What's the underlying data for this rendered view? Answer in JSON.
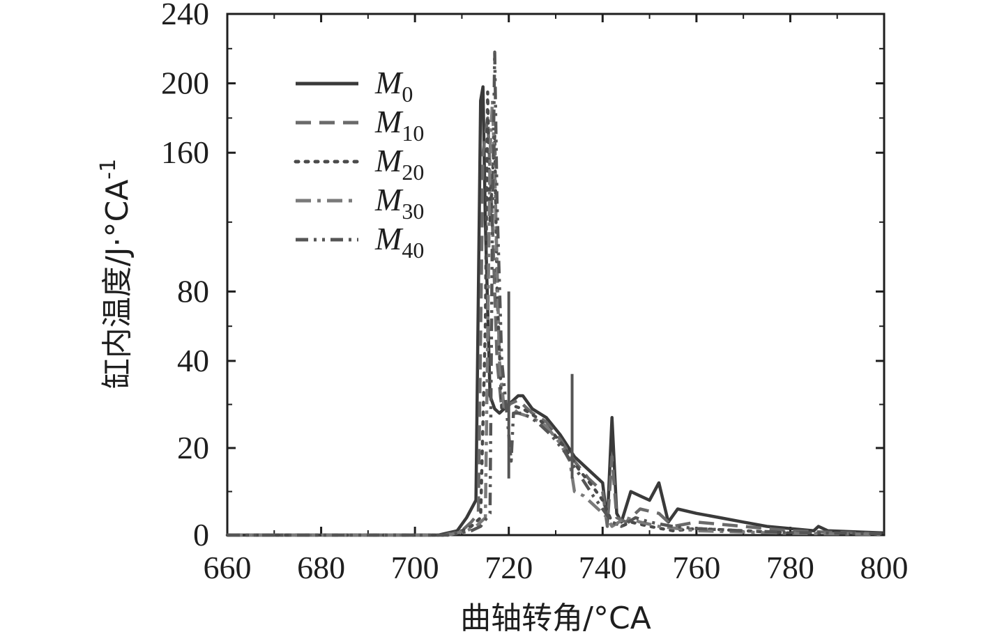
{
  "chart_data": {
    "type": "line",
    "xlabel": "曲轴转角/°CA",
    "ylabel": "缸内温度/J·°CA",
    "ylabel_sup": "-1",
    "xlim": [
      660,
      800
    ],
    "ylim_note": "piecewise y axis: 0-20, 20-40, 40-240 segments",
    "ylim": [
      0,
      240
    ],
    "x_ticks": [
      660,
      680,
      700,
      720,
      740,
      760,
      780,
      800
    ],
    "y_ticks": [
      0,
      20,
      40,
      80,
      160,
      200,
      240
    ],
    "legend_position": "top-left",
    "series": [
      {
        "name": "M0",
        "name_main": "M",
        "name_sub": "0",
        "style": "solid",
        "color": "#3a3a3a",
        "points": [
          [
            660,
            0
          ],
          [
            705,
            0
          ],
          [
            709,
            1
          ],
          [
            711,
            4
          ],
          [
            713,
            8
          ],
          [
            714,
            190
          ],
          [
            714.5,
            198
          ],
          [
            715,
            120
          ],
          [
            716,
            32
          ],
          [
            717,
            29
          ],
          [
            718,
            28
          ],
          [
            720,
            30
          ],
          [
            722,
            32
          ],
          [
            723,
            32
          ],
          [
            725,
            29
          ],
          [
            728,
            27
          ],
          [
            731,
            23
          ],
          [
            734,
            18
          ],
          [
            737,
            15
          ],
          [
            740,
            12
          ],
          [
            741,
            3
          ],
          [
            742,
            27
          ],
          [
            743,
            5
          ],
          [
            744,
            3
          ],
          [
            746,
            10
          ],
          [
            748,
            9
          ],
          [
            750,
            8
          ],
          [
            752,
            12
          ],
          [
            754,
            3
          ],
          [
            756,
            6
          ],
          [
            760,
            5
          ],
          [
            765,
            4
          ],
          [
            770,
            3
          ],
          [
            775,
            2
          ],
          [
            780,
            1.5
          ],
          [
            785,
            1
          ],
          [
            786,
            2
          ],
          [
            788,
            1
          ],
          [
            795,
            0.7
          ],
          [
            800,
            0.5
          ]
        ]
      },
      {
        "name": "M10",
        "name_main": "M",
        "name_sub": "10",
        "style": "dash",
        "color": "#6a6a6a",
        "points": [
          [
            660,
            0
          ],
          [
            706,
            0
          ],
          [
            710,
            1
          ],
          [
            712,
            3
          ],
          [
            713.5,
            5
          ],
          [
            714.5,
            160
          ],
          [
            715.5,
            180
          ],
          [
            716.5,
            120
          ],
          [
            717.5,
            40
          ],
          [
            718.5,
            29
          ],
          [
            720,
            30
          ],
          [
            722,
            31
          ],
          [
            723,
            30
          ],
          [
            725,
            28
          ],
          [
            728,
            26
          ],
          [
            731,
            22
          ],
          [
            734,
            17
          ],
          [
            737,
            13
          ],
          [
            740,
            10
          ],
          [
            741,
            2
          ],
          [
            742,
            18
          ],
          [
            743,
            4
          ],
          [
            745,
            3
          ],
          [
            748,
            6
          ],
          [
            752,
            5
          ],
          [
            755,
            2
          ],
          [
            760,
            3
          ],
          [
            765,
            2.5
          ],
          [
            770,
            2
          ],
          [
            780,
            1
          ],
          [
            790,
            0.6
          ],
          [
            800,
            0.3
          ]
        ]
      },
      {
        "name": "M20",
        "name_main": "M",
        "name_sub": "20",
        "style": "dot",
        "color": "#4a4a4a",
        "points": [
          [
            660,
            0
          ],
          [
            706,
            0
          ],
          [
            710,
            1
          ],
          [
            712,
            2
          ],
          [
            714,
            4
          ],
          [
            715,
            60
          ],
          [
            715.5,
            195
          ],
          [
            716,
            120
          ],
          [
            717,
            170
          ],
          [
            717.5,
            80
          ],
          [
            718.5,
            29
          ],
          [
            720,
            30
          ],
          [
            723,
            29
          ],
          [
            726,
            27
          ],
          [
            729,
            24
          ],
          [
            732,
            20
          ],
          [
            735,
            15
          ],
          [
            738,
            11
          ],
          [
            740,
            8
          ],
          [
            742,
            3
          ],
          [
            744,
            2
          ],
          [
            746,
            3
          ],
          [
            750,
            2
          ],
          [
            755,
            1
          ],
          [
            760,
            1.5
          ],
          [
            770,
            1
          ],
          [
            780,
            0.5
          ],
          [
            800,
            0.2
          ]
        ]
      },
      {
        "name": "M30",
        "name_main": "M",
        "name_sub": "30",
        "style": "dashdot",
        "color": "#7a7a7a",
        "points": [
          [
            660,
            0
          ],
          [
            707,
            0
          ],
          [
            711,
            1
          ],
          [
            713,
            2
          ],
          [
            715,
            4
          ],
          [
            716,
            160
          ],
          [
            716.5,
            190
          ],
          [
            717,
            150
          ],
          [
            718,
            40
          ],
          [
            719,
            29
          ],
          [
            720,
            30
          ],
          [
            722,
            28
          ],
          [
            725,
            27
          ],
          [
            728,
            25
          ],
          [
            731,
            21
          ],
          [
            733,
            17
          ],
          [
            734,
            10
          ],
          [
            736,
            9
          ],
          [
            739,
            6
          ],
          [
            741,
            4
          ],
          [
            742,
            2
          ],
          [
            745,
            4
          ],
          [
            748,
            3
          ],
          [
            752,
            2
          ],
          [
            756,
            1.5
          ],
          [
            760,
            1
          ],
          [
            770,
            0.7
          ],
          [
            780,
            0.4
          ],
          [
            800,
            0.2
          ]
        ]
      },
      {
        "name": "M40",
        "name_main": "M",
        "name_sub": "40",
        "style": "dashdotdot",
        "color": "#555555",
        "points": [
          [
            660,
            0
          ],
          [
            707,
            0
          ],
          [
            712,
            1
          ],
          [
            714,
            2
          ],
          [
            716,
            5
          ],
          [
            716.5,
            120
          ],
          [
            717,
            218
          ],
          [
            717.5,
            130
          ],
          [
            718.5,
            40
          ],
          [
            719.5,
            29
          ],
          [
            720.5,
            17
          ],
          [
            721,
            28
          ],
          [
            723,
            28
          ],
          [
            726,
            26
          ],
          [
            729,
            23
          ],
          [
            732,
            19
          ],
          [
            735,
            14
          ],
          [
            738,
            9
          ],
          [
            740,
            6
          ],
          [
            742,
            3
          ],
          [
            744,
            2
          ],
          [
            747,
            4
          ],
          [
            750,
            3
          ],
          [
            755,
            2
          ],
          [
            760,
            1.5
          ],
          [
            770,
            1
          ],
          [
            780,
            0.6
          ],
          [
            800,
            0.3
          ]
        ]
      }
    ],
    "spikes": [
      {
        "x": 720,
        "y": 80,
        "note": "vertical spike"
      },
      {
        "x": 733.5,
        "y": 37,
        "note": "vertical spike"
      }
    ]
  }
}
